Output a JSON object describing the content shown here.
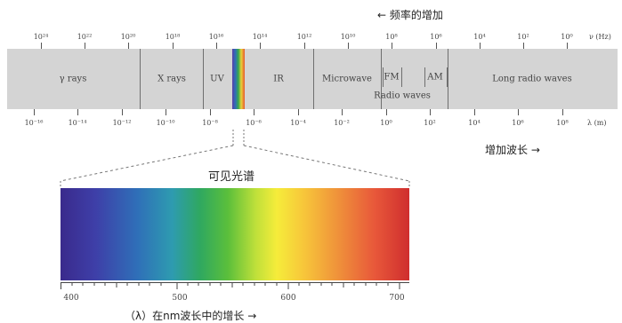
{
  "header": {
    "frequency_note": "← 频率的增加",
    "wavelength_note": "增加波长 →"
  },
  "top_scale": {
    "ticks": [
      "10²⁴",
      "10²²",
      "10²⁰",
      "10¹⁸",
      "10¹⁶",
      "10¹⁴",
      "10¹²",
      "10¹⁰",
      "10⁸",
      "10⁶",
      "10⁴",
      "10²",
      "10⁰"
    ],
    "unit": "ν (Hz)"
  },
  "bottom_scale": {
    "ticks": [
      "10⁻¹⁶",
      "10⁻¹⁴",
      "10⁻¹²",
      "10⁻¹⁰",
      "10⁻⁸",
      "10⁻⁶",
      "10⁻⁴",
      "10⁻²",
      "10⁰",
      "10²",
      "10⁴",
      "10⁶",
      "10⁸"
    ],
    "unit": "λ (m)"
  },
  "regions": [
    {
      "label": "γ rays"
    },
    {
      "label": "X rays"
    },
    {
      "label": "UV"
    },
    {
      "label": "IR"
    },
    {
      "label": "Microwave"
    },
    {
      "label": "FM"
    },
    {
      "label": "AM"
    },
    {
      "label": "Radio waves"
    },
    {
      "label": "Long radio waves"
    }
  ],
  "visible": {
    "title": "可见光谱",
    "ticks": [
      "400",
      "500",
      "600",
      "700"
    ],
    "axis_label": "（λ）在nm波长中的增长 →"
  },
  "colors": {
    "band": "#d4d4d4",
    "visible_stripe": [
      "#5a3fa8",
      "#2f6fb8",
      "#3aa84a",
      "#e8d23a",
      "#e8582e"
    ]
  }
}
